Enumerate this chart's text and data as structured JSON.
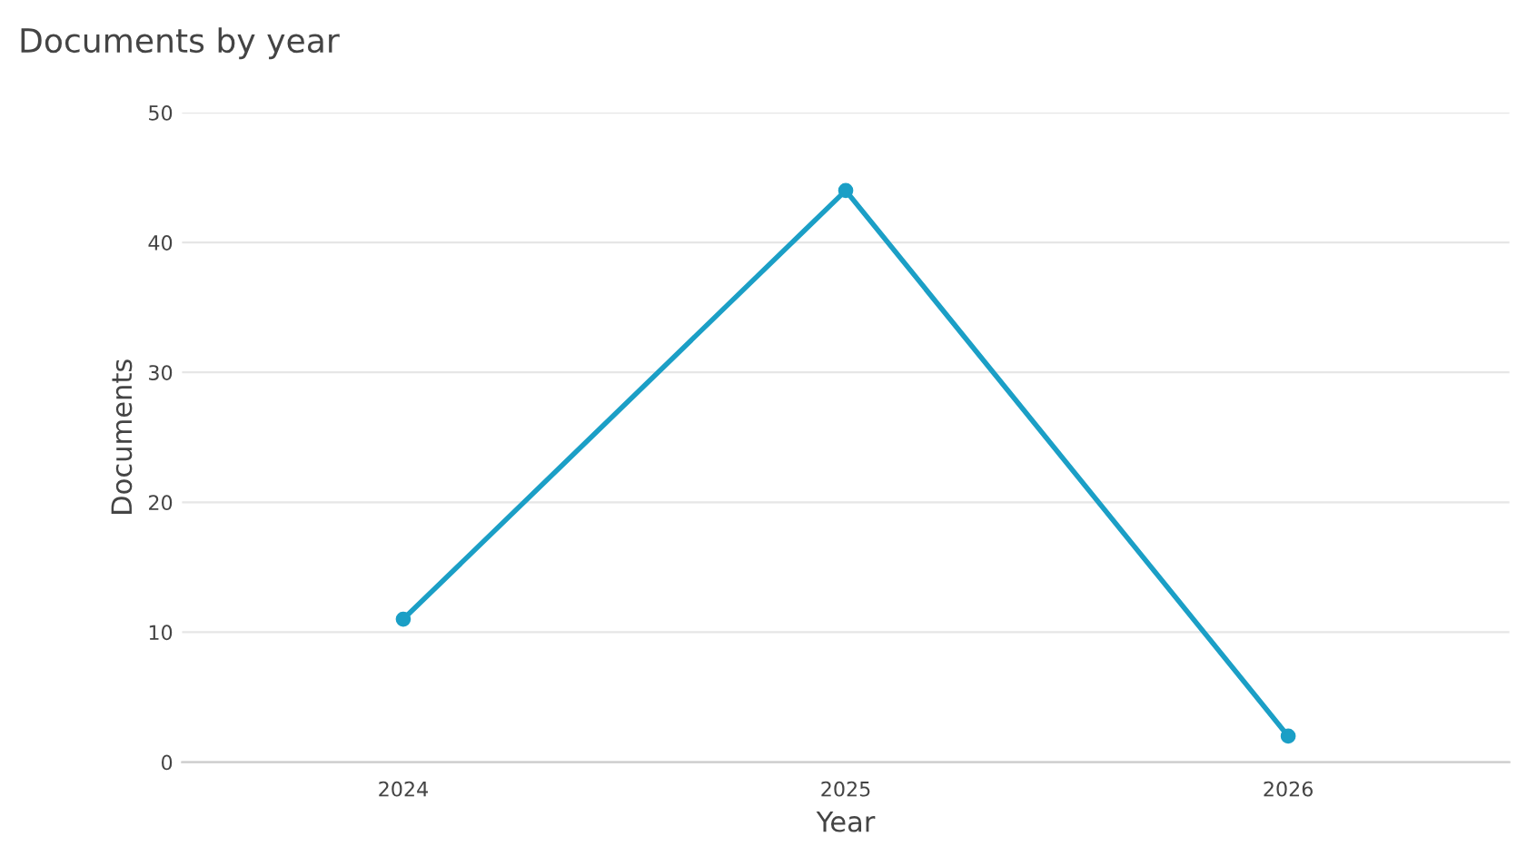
{
  "chart_data": {
    "type": "line",
    "title": "Documents by year",
    "xlabel": "Year",
    "ylabel": "Documents",
    "categories": [
      "2024",
      "2025",
      "2026"
    ],
    "series": [
      {
        "color": "#1b9fc6",
        "values": [
          11,
          44,
          2
        ]
      }
    ],
    "ylim": [
      0,
      50
    ],
    "yticks": [
      0,
      10,
      20,
      30,
      40,
      50
    ],
    "grid": "y",
    "marker": "circle",
    "line_style": "solid"
  }
}
